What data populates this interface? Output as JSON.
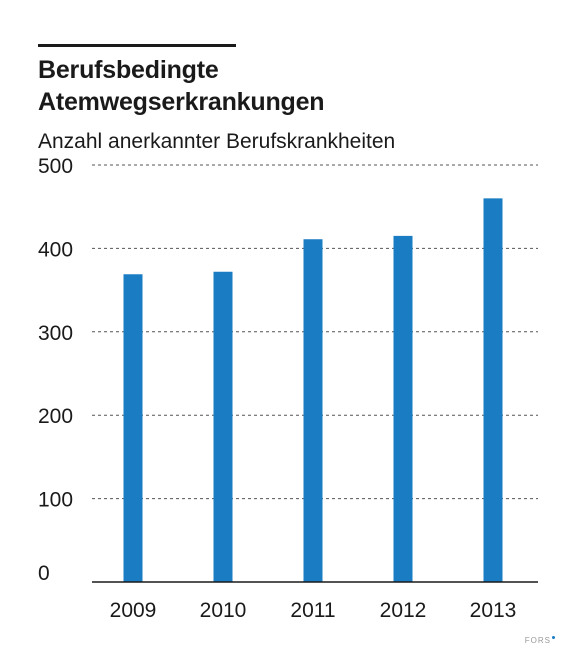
{
  "chart_data": {
    "type": "bar",
    "title_lines": [
      "Berufsbedingte",
      "Atemwegserkrankungen"
    ],
    "subtitle": "Anzahl anerkannter Berufskrankheiten",
    "categories": [
      "2009",
      "2010",
      "2011",
      "2012",
      "2013"
    ],
    "values": [
      369,
      372,
      411,
      415,
      460
    ],
    "ylim": [
      0,
      500
    ],
    "yticks": [
      0,
      100,
      200,
      300,
      400,
      500
    ],
    "grid": "horizontal-dashed",
    "bar_color": "#1a7dc4"
  },
  "footer": {
    "logo_text": "FORS"
  }
}
